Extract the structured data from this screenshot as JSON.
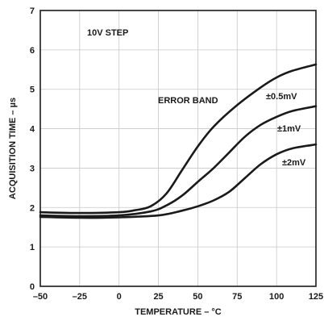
{
  "chart_data": {
    "type": "line",
    "title": "",
    "xlabel": "TEMPERATURE – °C",
    "ylabel": "ACQUISITION TIME – µs",
    "xlim": [
      -50,
      125
    ],
    "ylim": [
      0,
      7
    ],
    "x_ticks": [
      "–50",
      "–25",
      "0",
      "25",
      "50",
      "75",
      "100",
      "125"
    ],
    "y_ticks": [
      "0",
      "1",
      "2",
      "3",
      "4",
      "5",
      "6",
      "7"
    ],
    "grid": true,
    "annotations": [
      "10V STEP",
      "ERROR BAND"
    ],
    "series": [
      {
        "name": "±0.5mV",
        "x": [
          -50,
          -25,
          0,
          10,
          20,
          30,
          40,
          50,
          60,
          75,
          90,
          100,
          110,
          125
        ],
        "y": [
          1.88,
          1.86,
          1.88,
          1.93,
          2.03,
          2.35,
          2.95,
          3.55,
          4.05,
          4.6,
          5.05,
          5.3,
          5.47,
          5.63
        ]
      },
      {
        "name": "±1mV",
        "x": [
          -50,
          -25,
          0,
          20,
          30,
          40,
          50,
          60,
          70,
          80,
          90,
          100,
          110,
          125
        ],
        "y": [
          1.8,
          1.78,
          1.8,
          1.9,
          2.05,
          2.3,
          2.65,
          3.0,
          3.4,
          3.8,
          4.1,
          4.3,
          4.45,
          4.57
        ]
      },
      {
        "name": "±2mV",
        "x": [
          -50,
          -25,
          0,
          25,
          40,
          50,
          60,
          70,
          80,
          90,
          100,
          110,
          125
        ],
        "y": [
          1.76,
          1.74,
          1.75,
          1.8,
          1.92,
          2.03,
          2.18,
          2.4,
          2.75,
          3.1,
          3.35,
          3.5,
          3.6
        ]
      }
    ]
  }
}
